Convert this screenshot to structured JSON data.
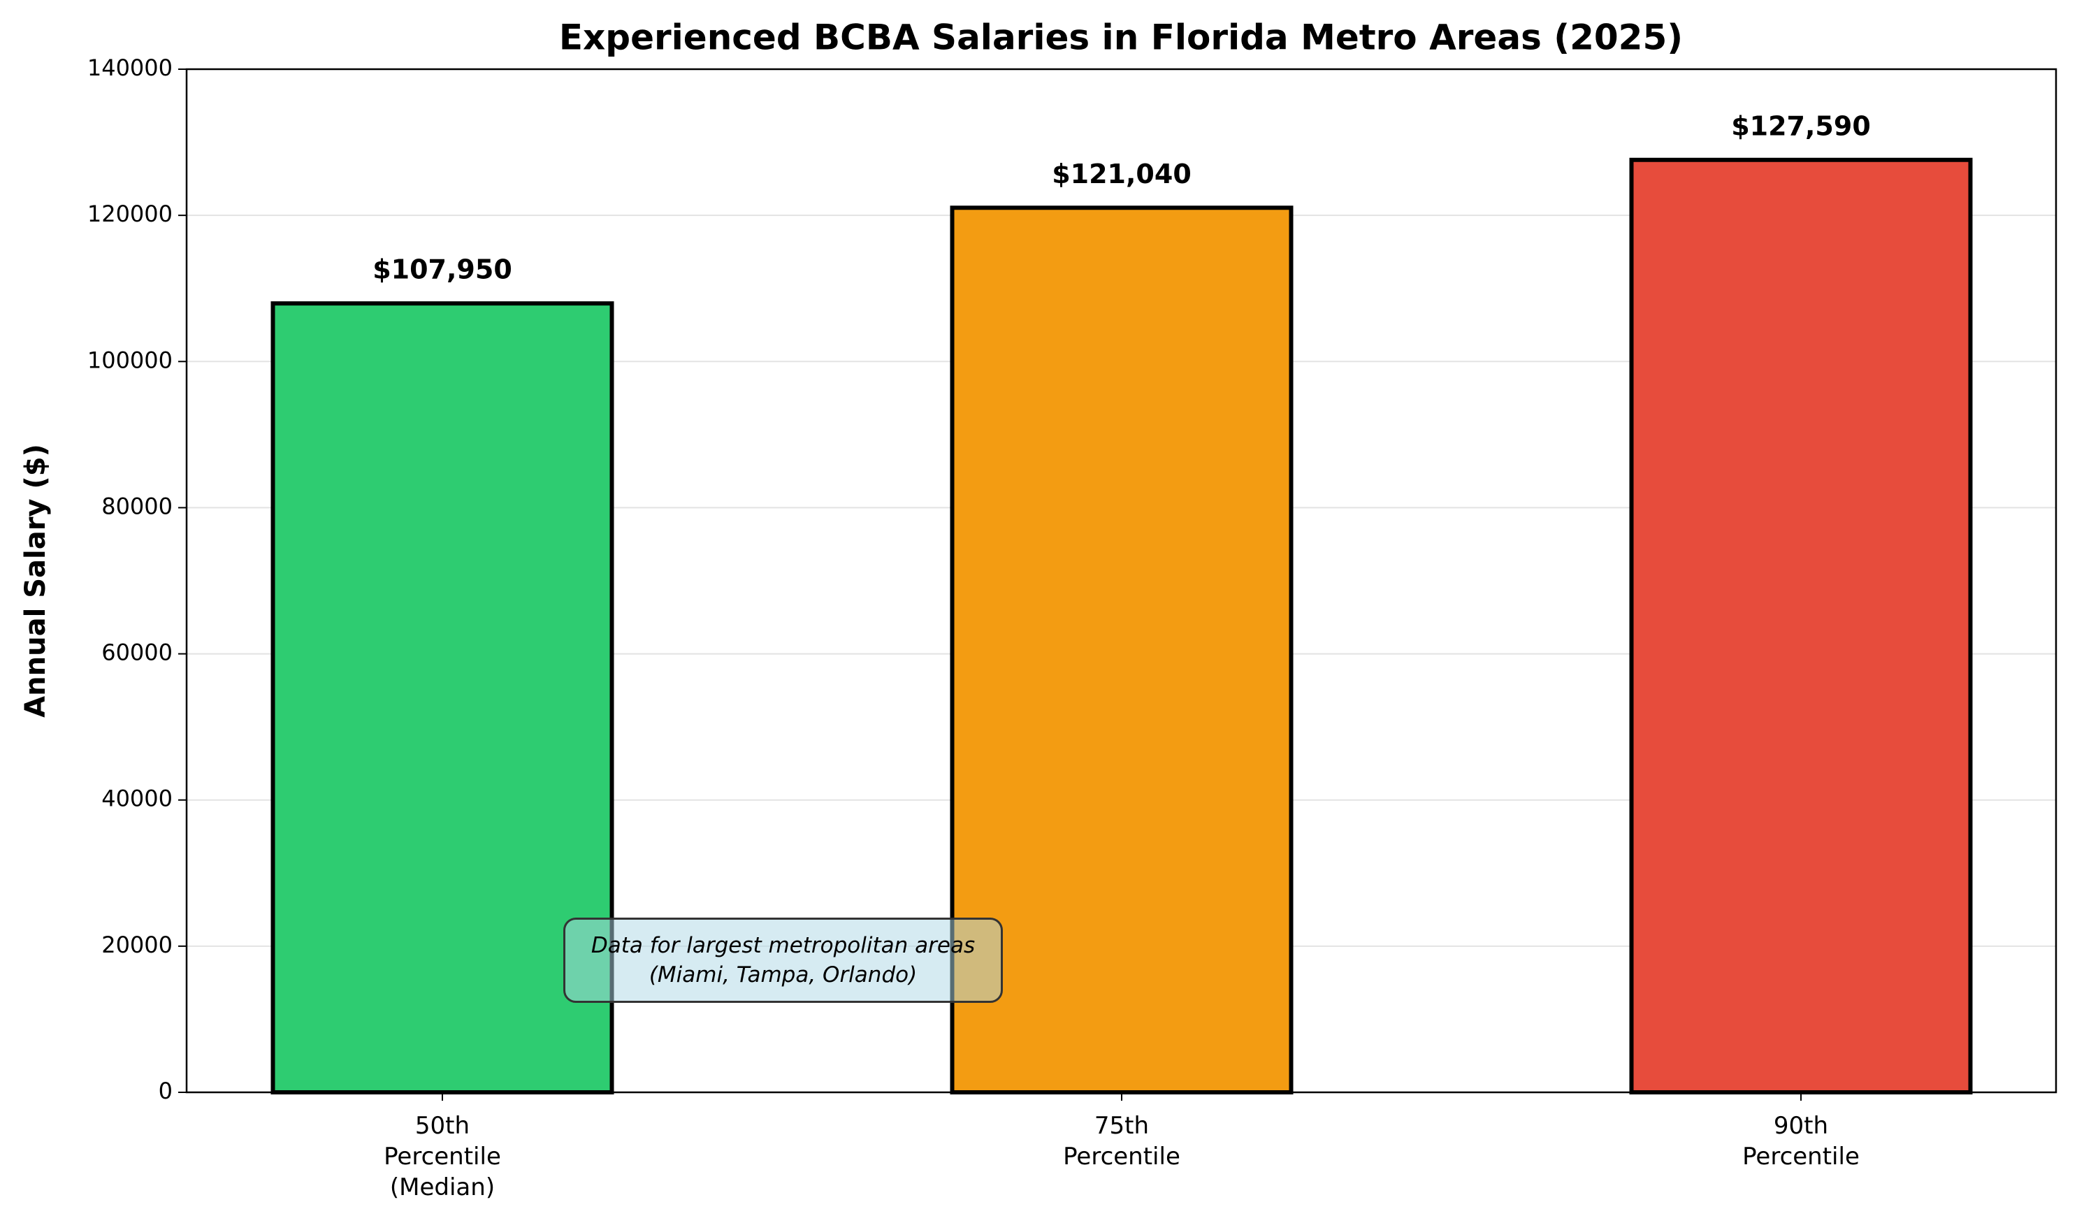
{
  "chart_data": {
    "type": "bar",
    "title": "Experienced BCBA Salaries in Florida Metro Areas (2025)",
    "ylabel": "Annual Salary ($)",
    "categories": [
      "50th\nPercentile\n(Median)",
      "75th\nPercentile",
      "90th\nPercentile"
    ],
    "values": [
      107950,
      121040,
      127590
    ],
    "value_labels": [
      "$107,950",
      "$121,040",
      "$127,590"
    ],
    "colors": [
      "#2ecc71",
      "#f39c12",
      "#e74c3c"
    ],
    "ylim": [
      0,
      140000
    ],
    "yticks": [
      0,
      20000,
      40000,
      60000,
      80000,
      100000,
      120000,
      140000
    ],
    "grid": true,
    "annotation": "Data for largest metropolitan areas\n(Miami, Tampa, Orlando)"
  }
}
